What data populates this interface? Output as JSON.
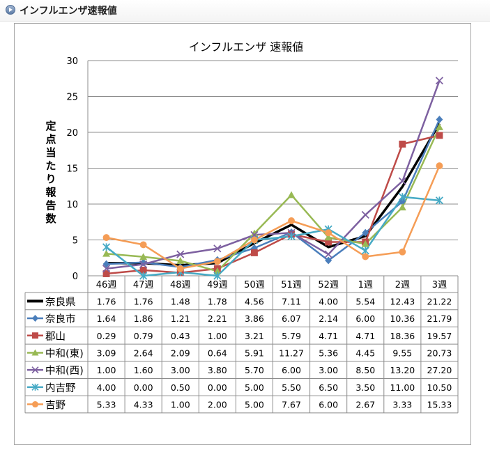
{
  "header": {
    "title": "インフルエンザ速報値"
  },
  "chart_data": {
    "type": "line",
    "title": "インフルエンザ 速報値",
    "ylabel": "定点当たり報告数",
    "ylim": [
      0,
      30
    ],
    "yticks": [
      0,
      5,
      10,
      15,
      20,
      25,
      30
    ],
    "grid": true,
    "legend": "data-table",
    "categories": [
      "46週",
      "47週",
      "48週",
      "49週",
      "50週",
      "51週",
      "52週",
      "1週",
      "2週",
      "3週"
    ],
    "series": [
      {
        "name": "奈良県",
        "color": "#000000",
        "marker": "none",
        "values": [
          1.76,
          1.76,
          1.48,
          1.78,
          4.56,
          7.11,
          4.0,
          5.54,
          12.43,
          21.22
        ],
        "labels": [
          "1.76",
          "1.76",
          "1.48",
          "1.78",
          "4.56",
          "7.11",
          "4.00",
          "5.54",
          "12.43",
          "21.22"
        ]
      },
      {
        "name": "奈良市",
        "color": "#4a7ebb",
        "marker": "diamond",
        "values": [
          1.64,
          1.86,
          1.21,
          2.21,
          3.86,
          6.07,
          2.14,
          6.0,
          10.36,
          21.79
        ],
        "labels": [
          "1.64",
          "1.86",
          "1.21",
          "2.21",
          "3.86",
          "6.07",
          "2.14",
          "6.00",
          "10.36",
          "21.79"
        ]
      },
      {
        "name": "郡山",
        "color": "#be4b48",
        "marker": "square",
        "values": [
          0.29,
          0.79,
          0.43,
          1.0,
          3.21,
          5.79,
          4.71,
          4.71,
          18.36,
          19.57
        ],
        "labels": [
          "0.29",
          "0.79",
          "0.43",
          "1.00",
          "3.21",
          "5.79",
          "4.71",
          "4.71",
          "18.36",
          "19.57"
        ]
      },
      {
        "name": "中和(東)",
        "color": "#98b954",
        "marker": "triangle",
        "values": [
          3.09,
          2.64,
          2.09,
          0.64,
          5.91,
          11.27,
          5.36,
          4.45,
          9.55,
          20.73
        ],
        "labels": [
          "3.09",
          "2.64",
          "2.09",
          "0.64",
          "5.91",
          "11.27",
          "5.36",
          "4.45",
          "9.55",
          "20.73"
        ]
      },
      {
        "name": "中和(西)",
        "color": "#7d60a0",
        "marker": "x",
        "values": [
          1.0,
          1.6,
          3.0,
          3.8,
          5.7,
          6.0,
          3.0,
          8.5,
          13.2,
          27.2
        ],
        "labels": [
          "1.00",
          "1.60",
          "3.00",
          "3.80",
          "5.70",
          "6.00",
          "3.00",
          "8.50",
          "13.20",
          "27.20"
        ]
      },
      {
        "name": "内吉野",
        "color": "#46aac5",
        "marker": "star",
        "values": [
          4.0,
          0.0,
          0.5,
          0.0,
          5.0,
          5.5,
          6.5,
          3.5,
          11.0,
          10.5
        ],
        "labels": [
          "4.00",
          "0.00",
          "0.50",
          "0.00",
          "5.00",
          "5.50",
          "6.50",
          "3.50",
          "11.00",
          "10.50"
        ]
      },
      {
        "name": "吉野",
        "color": "#f59d56",
        "marker": "circle",
        "values": [
          5.33,
          4.33,
          1.0,
          2.0,
          5.0,
          7.67,
          6.0,
          2.67,
          3.33,
          15.33
        ],
        "labels": [
          "5.33",
          "4.33",
          "1.00",
          "2.00",
          "5.00",
          "7.67",
          "6.00",
          "2.67",
          "3.33",
          "15.33"
        ]
      }
    ]
  }
}
